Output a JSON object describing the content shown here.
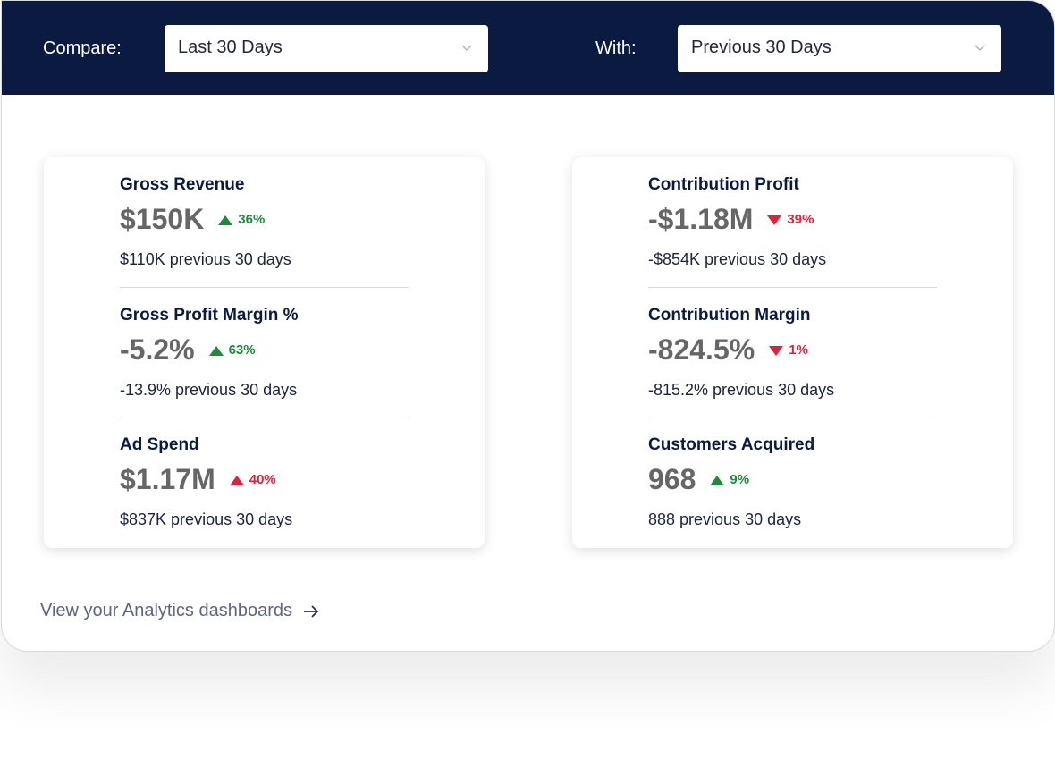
{
  "header": {
    "compare_label": "Compare:",
    "compare_value": "Last 30 Days",
    "with_label": "With:",
    "with_value": "Previous 30 Days"
  },
  "cards": [
    {
      "metrics": [
        {
          "title": "Gross Revenue",
          "value": "$150K",
          "change": "36%",
          "direction": "up",
          "color": "#1f8a3c",
          "previous": "$110K previous 30 days"
        },
        {
          "title": "Gross Profit Margin %",
          "value": "-5.2%",
          "change": "63%",
          "direction": "up",
          "color": "#1f8a3c",
          "previous": "-13.9% previous 30 days"
        },
        {
          "title": "Ad Spend",
          "value": "$1.17M",
          "change": "40%",
          "direction": "up",
          "color": "#e0213b",
          "previous": "$837K previous 30 days"
        }
      ]
    },
    {
      "metrics": [
        {
          "title": "Contribution Profit",
          "value": "-$1.18M",
          "change": "39%",
          "direction": "down",
          "color": "#e0213b",
          "previous": "-$854K previous 30 days"
        },
        {
          "title": "Contribution Margin",
          "value": "-824.5%",
          "change": "1%",
          "direction": "down",
          "color": "#e0213b",
          "previous": "-815.2% previous 30 days"
        },
        {
          "title": "Customers Acquired",
          "value": "968",
          "change": "9%",
          "direction": "up",
          "color": "#1f8a3c",
          "previous": "888 previous 30 days"
        }
      ]
    }
  ],
  "footer": {
    "link": "View your Analytics dashboards"
  }
}
